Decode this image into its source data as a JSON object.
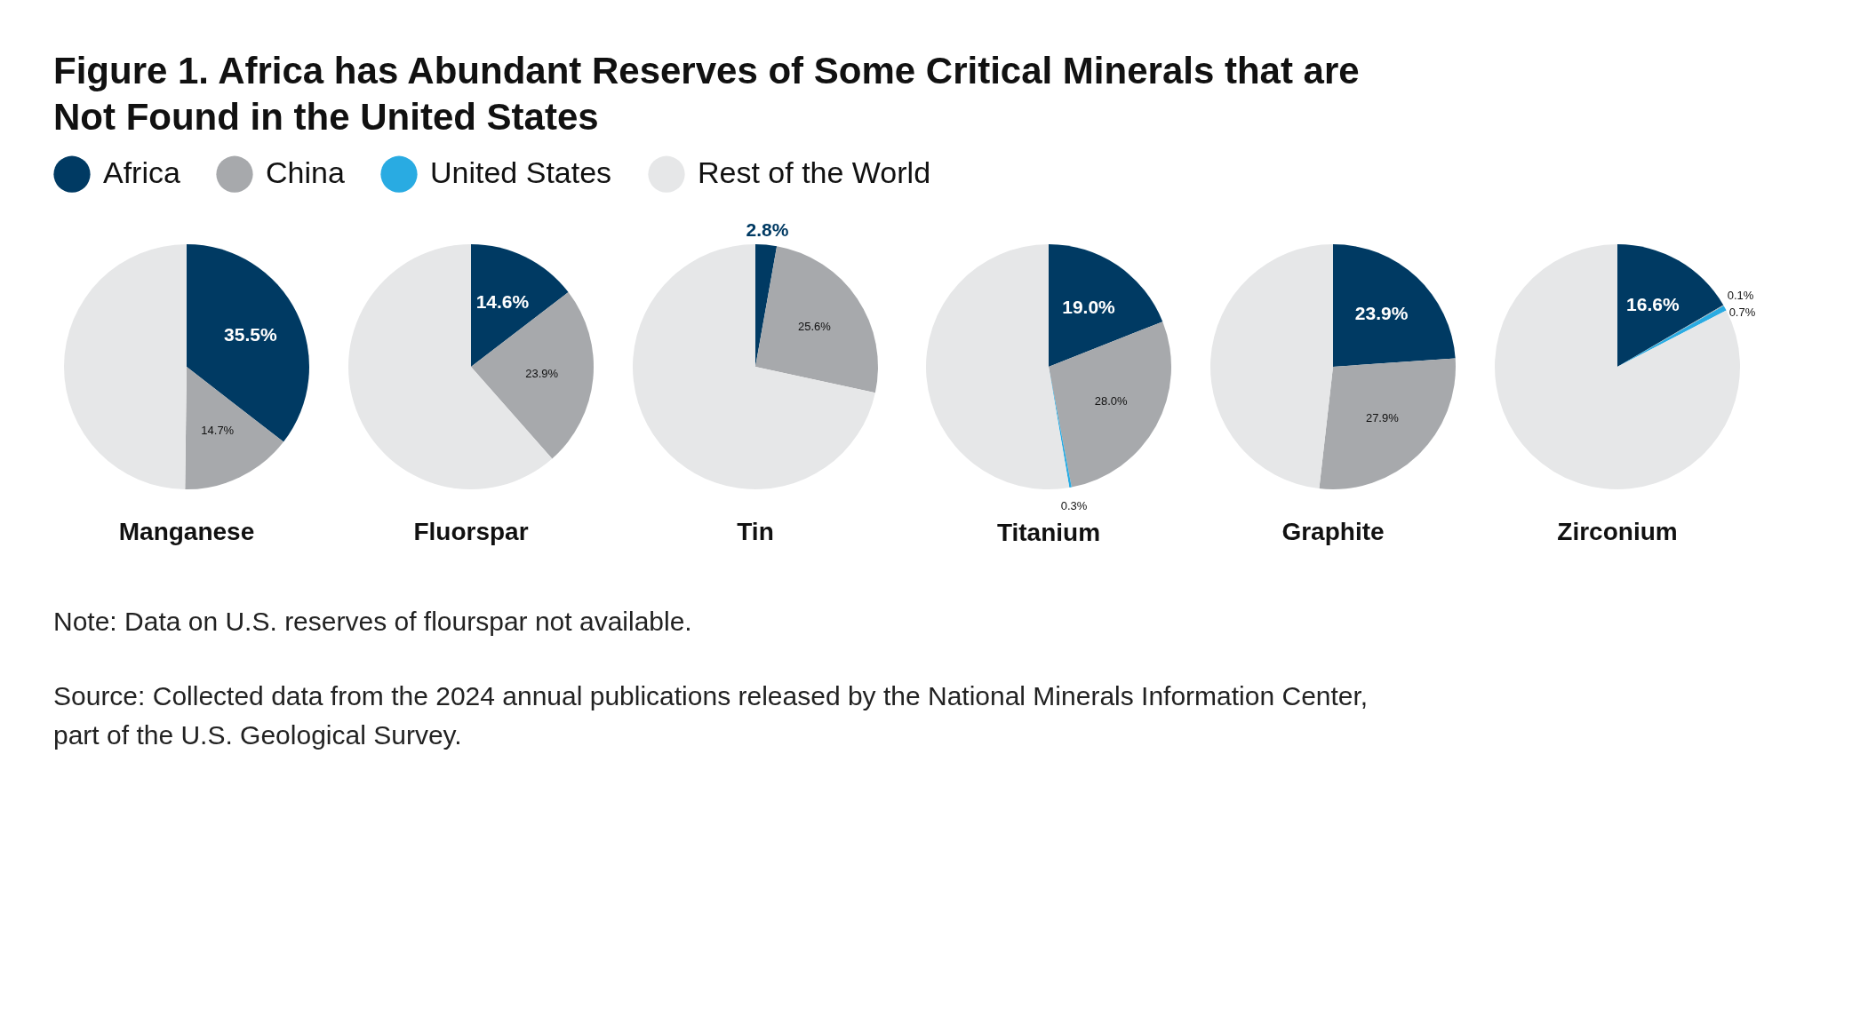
{
  "chart_data": [
    {
      "type": "other",
      "title": "Figure 1. Africa has Abundant Reserves of Some Critical Minerals that are Not Found in the United States",
      "annotations": [
        "Note: Data on U.S. reserves of flourspar not available.",
        "Source: Collected data from the 2024 annual publications released by the National Minerals Information Center, part of the U.S. Geological Survey."
      ]
    },
    {
      "type": "pie",
      "title": "Manganese",
      "categories": [
        "Africa",
        "China",
        "United States",
        "Rest of the World"
      ],
      "values": [
        35.5,
        14.7,
        null,
        49.8
      ],
      "colors": [
        "#003a63",
        "#a7a9ac",
        "#29abe2",
        "#e6e7e8"
      ],
      "value_labels": [
        "35.5%",
        "14.7%",
        null,
        null
      ],
      "legend": "top"
    },
    {
      "type": "pie",
      "title": "Fluorspar",
      "categories": [
        null,
        null,
        null,
        null
      ],
      "values": [
        14.6,
        23.9,
        null,
        61.5
      ],
      "colors": [
        "#003a63",
        "#a7a9ac",
        "#29abe2",
        "#e6e7e8"
      ],
      "value_labels": [
        "14.6%",
        "23.9%",
        null,
        null
      ]
    },
    {
      "type": "pie",
      "title": "Tin",
      "categories": [
        null,
        null,
        null,
        null
      ],
      "values": [
        2.8,
        25.6,
        null,
        71.6
      ],
      "colors": [
        "#003a63",
        "#a7a9ac",
        "#29abe2",
        "#e6e7e8"
      ],
      "value_labels": [
        "2.8%",
        "25.6%",
        null,
        null
      ]
    },
    {
      "type": "pie",
      "title": "Titanium",
      "categories": [
        null,
        null,
        null,
        null
      ],
      "values": [
        19.0,
        28.0,
        0.3,
        52.7
      ],
      "colors": [
        "#003a63",
        "#a7a9ac",
        "#29abe2",
        "#e6e7e8"
      ],
      "value_labels": [
        "19.0%",
        "28.0%",
        "0.3%",
        null
      ]
    },
    {
      "type": "pie",
      "title": "Graphite",
      "categories": [
        null,
        null,
        null,
        null
      ],
      "values": [
        23.9,
        27.9,
        null,
        48.2
      ],
      "colors": [
        "#003a63",
        "#a7a9ac",
        "#29abe2",
        "#e6e7e8"
      ],
      "value_labels": [
        "23.9%",
        "27.9%",
        null,
        null
      ]
    },
    {
      "type": "pie",
      "title": "Zirconium",
      "categories": [
        null,
        null,
        null,
        null
      ],
      "values": [
        16.6,
        0.1,
        0.7,
        82.6
      ],
      "colors": [
        "#003a63",
        "#a7a9ac",
        "#29abe2",
        "#e6e7e8"
      ],
      "value_labels": [
        "16.6%",
        "0.1%",
        "0.7%",
        null
      ]
    }
  ]
}
